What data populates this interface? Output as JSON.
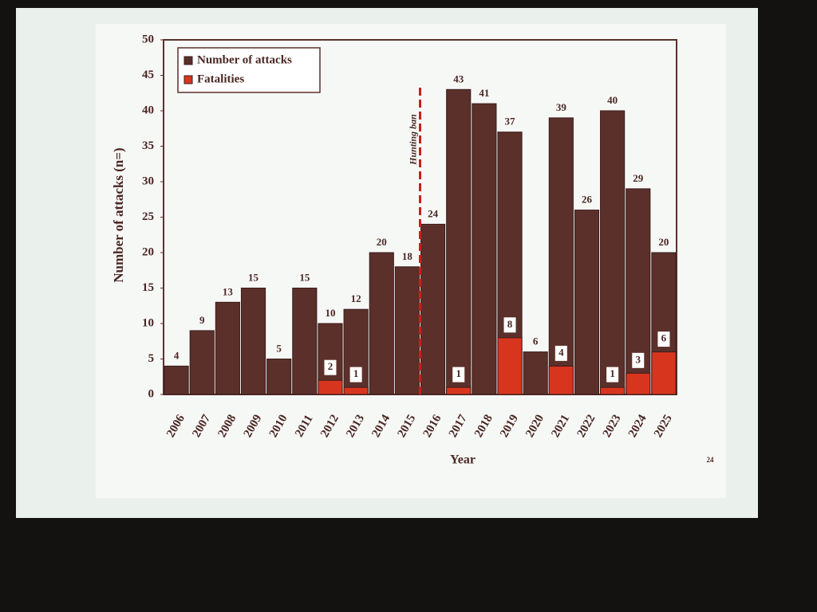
{
  "chart_data": {
    "type": "bar",
    "x_label": "Year",
    "y_label": "Number of attacks (n=)",
    "categories": [
      "2006",
      "2007",
      "2008",
      "2009",
      "2010",
      "2011",
      "2012",
      "2013",
      "2014",
      "2015",
      "2016",
      "2017",
      "2018",
      "2019",
      "2020",
      "2021",
      "2022",
      "2023",
      "2024",
      "2025"
    ],
    "series": [
      {
        "name": "Number of attacks",
        "color": "#5b302b",
        "values": [
          4,
          9,
          13,
          15,
          5,
          15,
          10,
          12,
          20,
          18,
          24,
          43,
          41,
          37,
          6,
          39,
          26,
          40,
          29,
          20
        ]
      },
      {
        "name": "Fatalities",
        "color": "#d8351f",
        "values": [
          null,
          null,
          null,
          null,
          null,
          null,
          2,
          1,
          null,
          null,
          null,
          1,
          null,
          8,
          null,
          4,
          null,
          1,
          3,
          6
        ]
      }
    ],
    "ylim": [
      0,
      50
    ],
    "yticks": [
      0,
      5,
      10,
      15,
      20,
      25,
      30,
      35,
      40,
      45,
      50
    ],
    "annotation": {
      "text": "Hunting ban",
      "after": "2015",
      "color": "#c8201a"
    },
    "slide_number": "24"
  }
}
